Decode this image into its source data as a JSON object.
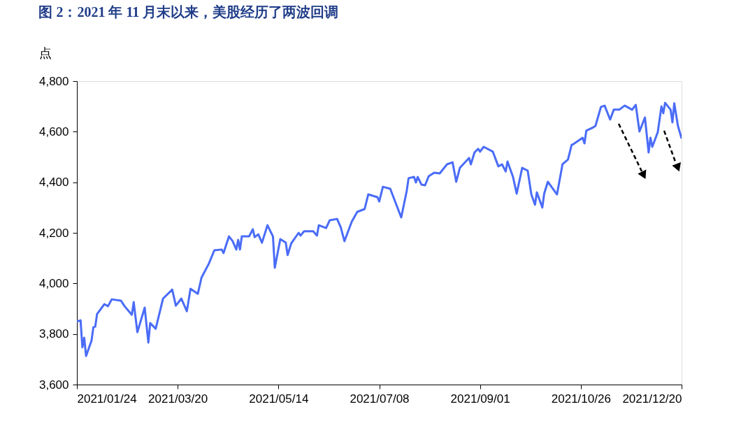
{
  "chart_data": {
    "type": "line",
    "title": "图 2：2021 年 11 月末以来，美股经历了两波回调",
    "ylabel": "点",
    "x": [
      "2021-01-24",
      "2021-01-26",
      "2021-01-27",
      "2021-01-28",
      "2021-01-29",
      "2021-02-01",
      "2021-02-02",
      "2021-02-03",
      "2021-02-04",
      "2021-02-08",
      "2021-02-10",
      "2021-02-12",
      "2021-02-17",
      "2021-02-19",
      "2021-02-23",
      "2021-02-24",
      "2021-02-26",
      "2021-03-02",
      "2021-03-04",
      "2021-03-05",
      "2021-03-08",
      "2021-03-12",
      "2021-03-16",
      "2021-03-17",
      "2021-03-19",
      "2021-03-22",
      "2021-03-25",
      "2021-03-27",
      "2021-03-31",
      "2021-04-02",
      "2021-04-06",
      "2021-04-09",
      "2021-04-13",
      "2021-04-14",
      "2021-04-17",
      "2021-04-19",
      "2021-04-21",
      "2021-04-22",
      "2021-04-23",
      "2021-04-24",
      "2021-04-28",
      "2021-04-30",
      "2021-05-01",
      "2021-05-03",
      "2021-05-05",
      "2021-05-08",
      "2021-05-11",
      "2021-05-12",
      "2021-05-15",
      "2021-05-18",
      "2021-05-19",
      "2021-05-21",
      "2021-05-25",
      "2021-05-26",
      "2021-05-28",
      "2021-06-02",
      "2021-06-04",
      "2021-06-05",
      "2021-06-09",
      "2021-06-11",
      "2021-06-15",
      "2021-06-17",
      "2021-06-19",
      "2021-06-23",
      "2021-06-26",
      "2021-06-30",
      "2021-07-02",
      "2021-07-07",
      "2021-07-08",
      "2021-07-10",
      "2021-07-14",
      "2021-07-20",
      "2021-07-23",
      "2021-07-24",
      "2021-07-27",
      "2021-07-28",
      "2021-07-29",
      "2021-07-31",
      "2021-08-02",
      "2021-08-04",
      "2021-08-07",
      "2021-08-10",
      "2021-08-14",
      "2021-08-17",
      "2021-08-19",
      "2021-08-21",
      "2021-08-26",
      "2021-08-27",
      "2021-08-29",
      "2021-08-31",
      "2021-09-01",
      "2021-09-03",
      "2021-09-08",
      "2021-09-11",
      "2021-09-13",
      "2021-09-15",
      "2021-09-16",
      "2021-09-19",
      "2021-09-21",
      "2021-09-24",
      "2021-09-27",
      "2021-09-29",
      "2021-10-01",
      "2021-10-02",
      "2021-10-05",
      "2021-10-06",
      "2021-10-08",
      "2021-10-13",
      "2021-10-16",
      "2021-10-19",
      "2021-10-21",
      "2021-10-22",
      "2021-10-27",
      "2021-10-28",
      "2021-10-29",
      "2021-11-02",
      "2021-11-03",
      "2021-11-06",
      "2021-11-08",
      "2021-11-11",
      "2021-11-13",
      "2021-11-16",
      "2021-11-18",
      "2021-11-19",
      "2021-11-23",
      "2021-11-25",
      "2021-11-27",
      "2021-11-30",
      "2021-12-02",
      "2021-12-03",
      "2021-12-04",
      "2021-12-07",
      "2021-12-09",
      "2021-12-10",
      "2021-12-11",
      "2021-12-14",
      "2021-12-15",
      "2021-12-16",
      "2021-12-18",
      "2021-12-20"
    ],
    "series": [
      {
        "color": "#4a6cf7",
        "values": [
          3849,
          3854,
          3747,
          3785,
          3713,
          3774,
          3827,
          3829,
          3879,
          3918,
          3910,
          3937,
          3932,
          3910,
          3876,
          3926,
          3807,
          3904,
          3766,
          3843,
          3821,
          3940,
          3968,
          3976,
          3912,
          3940,
          3890,
          3979,
          3959,
          4023,
          4078,
          4131,
          4134,
          4120,
          4186,
          4167,
          4134,
          4172,
          4134,
          4186,
          4186,
          4214,
          4183,
          4194,
          4161,
          4230,
          4186,
          4062,
          4175,
          4161,
          4112,
          4159,
          4200,
          4189,
          4206,
          4206,
          4189,
          4230,
          4219,
          4250,
          4255,
          4222,
          4167,
          4244,
          4283,
          4294,
          4352,
          4341,
          4324,
          4382,
          4374,
          4261,
          4366,
          4416,
          4421,
          4399,
          4421,
          4391,
          4388,
          4424,
          4438,
          4435,
          4471,
          4479,
          4402,
          4457,
          4496,
          4471,
          4518,
          4532,
          4521,
          4540,
          4521,
          4463,
          4471,
          4443,
          4482,
          4421,
          4355,
          4457,
          4446,
          4352,
          4311,
          4360,
          4300,
          4355,
          4402,
          4352,
          4471,
          4490,
          4548,
          4551,
          4576,
          4554,
          4604,
          4618,
          4623,
          4698,
          4703,
          4648,
          4687,
          4687,
          4698,
          4703,
          4687,
          4706,
          4601,
          4656,
          4518,
          4576,
          4540,
          4598,
          4700,
          4673,
          4714,
          4687,
          4637,
          4712,
          4623,
          4573
        ]
      }
    ],
    "xlim": [
      "2021-01-24",
      "2021-12-20"
    ],
    "xticks": [
      {
        "value": "2021-01-24",
        "label": "2021/01/24"
      },
      {
        "value": "2021-03-20",
        "label": "2021/03/20"
      },
      {
        "value": "2021-05-14",
        "label": "2021/05/14"
      },
      {
        "value": "2021-07-08",
        "label": "2021/07/08"
      },
      {
        "value": "2021-09-01",
        "label": "2021/09/01"
      },
      {
        "value": "2021-10-26",
        "label": "2021/10/26"
      },
      {
        "value": "2021-12-20",
        "label": "2021/12/20"
      }
    ],
    "ylim": [
      3600,
      4800
    ],
    "yticks": [
      {
        "value": 3600,
        "label": "3,600"
      },
      {
        "value": 3800,
        "label": "3,800"
      },
      {
        "value": 4000,
        "label": "4,000"
      },
      {
        "value": 4200,
        "label": "4,200"
      },
      {
        "value": 4400,
        "label": "4,400"
      },
      {
        "value": 4600,
        "label": "4,600"
      },
      {
        "value": 4800,
        "label": "4,800"
      }
    ],
    "grid": false,
    "marker": "none",
    "line_style": "solid"
  }
}
